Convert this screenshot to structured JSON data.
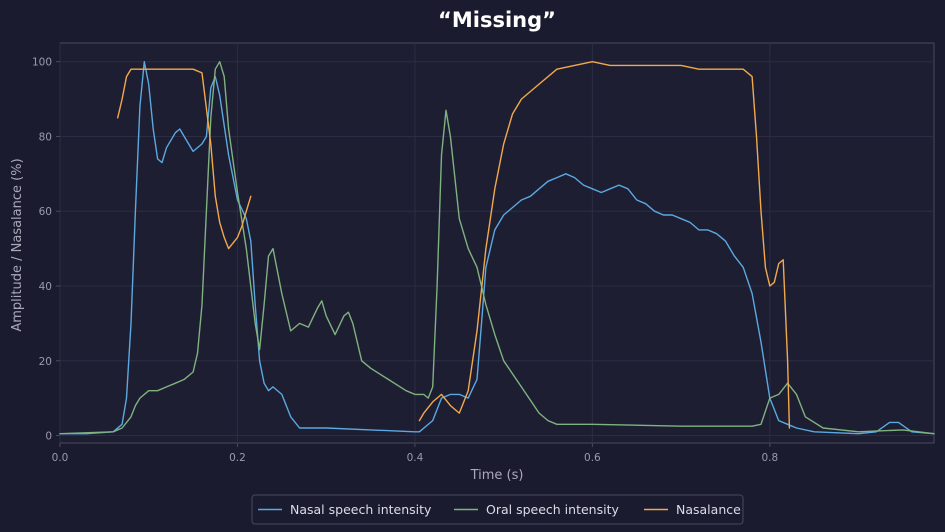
{
  "chart_data": {
    "type": "line",
    "title": "“Missing”",
    "xlabel": "Time (s)",
    "ylabel": "Amplitude / Nasalance (%)",
    "xlim": [
      0,
      0.985
    ],
    "ylim": [
      -2,
      105
    ],
    "xticks": [
      0.0,
      0.2,
      0.4,
      0.6,
      0.8
    ],
    "xtick_labels": [
      "0.0",
      "0.2",
      "0.4",
      "0.6",
      "0.8"
    ],
    "yticks": [
      0,
      20,
      40,
      60,
      80,
      100
    ],
    "ytick_labels": [
      "0",
      "20",
      "40",
      "60",
      "80",
      "100"
    ],
    "grid": true,
    "legend_position": "bottom-center",
    "colors": {
      "background": "#1b1b2f",
      "axes": "#4a4a5e",
      "grid": "#2c2c42",
      "nasal": "#5aa9e0",
      "oral": "#7fb27f",
      "nasalance": "#f2a94b"
    },
    "series": [
      {
        "name": "Nasal speech intensity",
        "color": "#5aa9e0",
        "x": [
          0,
          0.03,
          0.06,
          0.07,
          0.075,
          0.08,
          0.085,
          0.09,
          0.095,
          0.1,
          0.105,
          0.11,
          0.115,
          0.12,
          0.13,
          0.135,
          0.14,
          0.15,
          0.16,
          0.165,
          0.17,
          0.175,
          0.18,
          0.19,
          0.2,
          0.21,
          0.215,
          0.22,
          0.225,
          0.23,
          0.235,
          0.24,
          0.25,
          0.26,
          0.27,
          0.3,
          0.35,
          0.4,
          0.405,
          0.42,
          0.43,
          0.44,
          0.45,
          0.46,
          0.47,
          0.475,
          0.48,
          0.49,
          0.5,
          0.52,
          0.53,
          0.54,
          0.55,
          0.56,
          0.57,
          0.58,
          0.59,
          0.6,
          0.61,
          0.62,
          0.63,
          0.64,
          0.65,
          0.66,
          0.67,
          0.68,
          0.69,
          0.7,
          0.71,
          0.72,
          0.73,
          0.74,
          0.75,
          0.76,
          0.77,
          0.78,
          0.79,
          0.8,
          0.81,
          0.82,
          0.83,
          0.85,
          0.9,
          0.92,
          0.935,
          0.945,
          0.96,
          0.985
        ],
        "values": [
          0.5,
          0.5,
          1,
          3,
          10,
          30,
          60,
          88,
          100,
          94,
          82,
          74,
          73,
          77,
          81,
          82,
          80,
          76,
          78,
          80,
          93,
          96,
          91,
          75,
          63,
          58,
          52,
          35,
          20,
          14,
          12,
          13,
          11,
          5,
          2,
          2,
          1.5,
          1,
          1,
          4,
          10,
          11,
          11,
          10,
          15,
          30,
          45,
          55,
          59,
          63,
          64,
          66,
          68,
          69,
          70,
          69,
          67,
          66,
          65,
          66,
          67,
          66,
          63,
          62,
          60,
          59,
          59,
          58,
          57,
          55,
          55,
          54,
          52,
          48,
          45,
          38,
          25,
          10,
          4,
          3,
          2,
          1,
          0.5,
          1,
          3.5,
          3.5,
          1,
          0.5
        ]
      },
      {
        "name": "Oral speech intensity",
        "color": "#7fb27f",
        "x": [
          0,
          0.06,
          0.07,
          0.08,
          0.085,
          0.09,
          0.1,
          0.11,
          0.12,
          0.13,
          0.14,
          0.15,
          0.155,
          0.16,
          0.165,
          0.17,
          0.175,
          0.18,
          0.185,
          0.19,
          0.2,
          0.21,
          0.22,
          0.225,
          0.23,
          0.235,
          0.24,
          0.25,
          0.26,
          0.27,
          0.28,
          0.29,
          0.295,
          0.3,
          0.31,
          0.32,
          0.325,
          0.33,
          0.34,
          0.35,
          0.37,
          0.39,
          0.4,
          0.41,
          0.415,
          0.42,
          0.425,
          0.43,
          0.435,
          0.44,
          0.45,
          0.46,
          0.47,
          0.48,
          0.49,
          0.5,
          0.52,
          0.54,
          0.55,
          0.56,
          0.6,
          0.7,
          0.78,
          0.79,
          0.8,
          0.81,
          0.82,
          0.83,
          0.84,
          0.86,
          0.9,
          0.95,
          0.985
        ],
        "values": [
          0.5,
          1,
          2,
          5,
          8,
          10,
          12,
          12,
          13,
          14,
          15,
          17,
          22,
          35,
          60,
          85,
          98,
          100,
          96,
          82,
          65,
          50,
          30,
          23,
          35,
          48,
          50,
          38,
          28,
          30,
          29,
          34,
          36,
          32,
          27,
          32,
          33,
          30,
          20,
          18,
          15,
          12,
          11,
          11,
          10,
          13,
          40,
          75,
          87,
          80,
          58,
          50,
          45,
          35,
          27,
          20,
          13,
          6,
          4,
          3,
          3,
          2.5,
          2.5,
          3,
          10,
          11,
          14,
          11,
          5,
          2,
          1,
          1.5,
          0.5
        ]
      },
      {
        "name": "Nasalance",
        "color": "#f2a94b",
        "segments": [
          {
            "x": [
              0.065,
              0.07,
              0.075,
              0.08,
              0.09,
              0.1,
              0.12,
              0.15,
              0.16,
              0.17,
              0.175,
              0.18,
              0.185,
              0.19,
              0.2,
              0.205,
              0.21,
              0.215
            ],
            "values": [
              85,
              90,
              96,
              98,
              98,
              98,
              98,
              98,
              97,
              78,
              64,
              57,
              53,
              50,
              53,
              56,
              60,
              64
            ]
          },
          {
            "x": [
              0.405,
              0.41,
              0.42,
              0.425,
              0.43,
              0.44,
              0.45,
              0.46,
              0.47,
              0.48,
              0.49,
              0.5,
              0.51,
              0.52,
              0.54,
              0.56,
              0.58,
              0.6,
              0.62,
              0.64,
              0.66,
              0.68,
              0.7,
              0.72,
              0.74,
              0.76,
              0.77,
              0.78,
              0.785,
              0.79,
              0.795,
              0.8,
              0.805,
              0.81,
              0.815,
              0.82,
              0.822
            ],
            "values": [
              4,
              6,
              9,
              10,
              11,
              8,
              6,
              12,
              28,
              50,
              66,
              78,
              86,
              90,
              94,
              98,
              99,
              100,
              99,
              99,
              99,
              99,
              99,
              98,
              98,
              98,
              98,
              96,
              80,
              60,
              45,
              40,
              41,
              46,
              47,
              20,
              2
            ]
          }
        ]
      }
    ]
  }
}
